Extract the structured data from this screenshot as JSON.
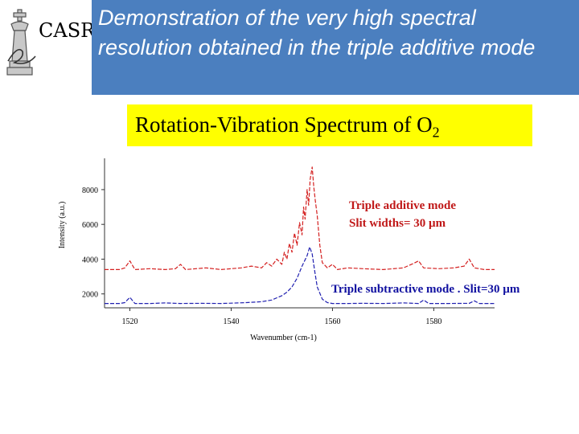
{
  "logo": {
    "text": "CASR",
    "icon": "chess-king-icon"
  },
  "header": {
    "title": "Demonstration of the very high spectral resolution obtained in the triple additive mode"
  },
  "subtitle": {
    "text": "Rotation-Vibration Spectrum of O",
    "subscript": "2",
    "background": "#ffff00"
  },
  "colors": {
    "banner": "#4b7fbf",
    "additive": "#d42020",
    "subtractive": "#2020b0",
    "annotation_additive": "#c01818",
    "annotation_subtractive": "#1010a0"
  },
  "chart_data": {
    "type": "line",
    "xlabel": "Wavenumber (cm-1)",
    "ylabel": "Intensity (a.u.)",
    "xlim": [
      1515,
      1592
    ],
    "ylim": [
      1200,
      9800
    ],
    "x_ticks": [
      1520,
      1540,
      1560,
      1580
    ],
    "y_ticks": [
      2000,
      4000,
      6000,
      8000
    ],
    "grid": false,
    "series": [
      {
        "name": "Triple additive mode",
        "color": "#d42020",
        "x": [
          1515,
          1518,
          1519,
          1520,
          1521,
          1524,
          1527,
          1529,
          1530,
          1531,
          1535,
          1538,
          1540,
          1542,
          1544,
          1546,
          1547,
          1548,
          1549,
          1550,
          1550.5,
          1551,
          1551.5,
          1552,
          1552.5,
          1553,
          1553.5,
          1554,
          1554.3,
          1554.6,
          1555,
          1555.3,
          1555.6,
          1556,
          1556.3,
          1556.6,
          1557,
          1557.5,
          1558,
          1559,
          1560,
          1561,
          1563,
          1566,
          1570,
          1574,
          1576,
          1577,
          1578,
          1581,
          1584,
          1586,
          1587,
          1588,
          1590,
          1592
        ],
        "y": [
          3400,
          3400,
          3500,
          3900,
          3400,
          3450,
          3400,
          3450,
          3700,
          3400,
          3500,
          3400,
          3450,
          3500,
          3600,
          3500,
          3800,
          3600,
          4000,
          3700,
          4400,
          4000,
          4900,
          4400,
          5500,
          4800,
          6100,
          5400,
          7000,
          6300,
          8000,
          7100,
          8600,
          9300,
          8200,
          7400,
          6500,
          4800,
          3800,
          3500,
          3700,
          3400,
          3500,
          3450,
          3400,
          3500,
          3750,
          3900,
          3500,
          3450,
          3500,
          3600,
          4000,
          3500,
          3400,
          3400
        ]
      },
      {
        "name": "Triple subtractive mode",
        "color": "#2020b0",
        "x": [
          1515,
          1518,
          1519,
          1520,
          1521,
          1524,
          1527,
          1530,
          1534,
          1538,
          1540,
          1543,
          1546,
          1548,
          1550,
          1551,
          1552,
          1553,
          1554,
          1555,
          1555.5,
          1556,
          1556.5,
          1557,
          1558,
          1559,
          1560,
          1563,
          1566,
          1570,
          1574,
          1577,
          1578,
          1579,
          1583,
          1587,
          1588,
          1589,
          1592
        ],
        "y": [
          1450,
          1450,
          1500,
          1800,
          1450,
          1450,
          1480,
          1450,
          1460,
          1450,
          1470,
          1500,
          1550,
          1650,
          1900,
          2100,
          2400,
          2900,
          3600,
          4200,
          4700,
          4300,
          3300,
          2400,
          1700,
          1500,
          1450,
          1450,
          1460,
          1450,
          1480,
          1450,
          1650,
          1450,
          1450,
          1460,
          1600,
          1450,
          1450
        ]
      }
    ]
  },
  "annotations": {
    "additive_line1": "Triple additive mode",
    "additive_line2": "Slit widths= 30 µm",
    "subtractive": "Triple subtractive mode . Slit=30 µm"
  }
}
